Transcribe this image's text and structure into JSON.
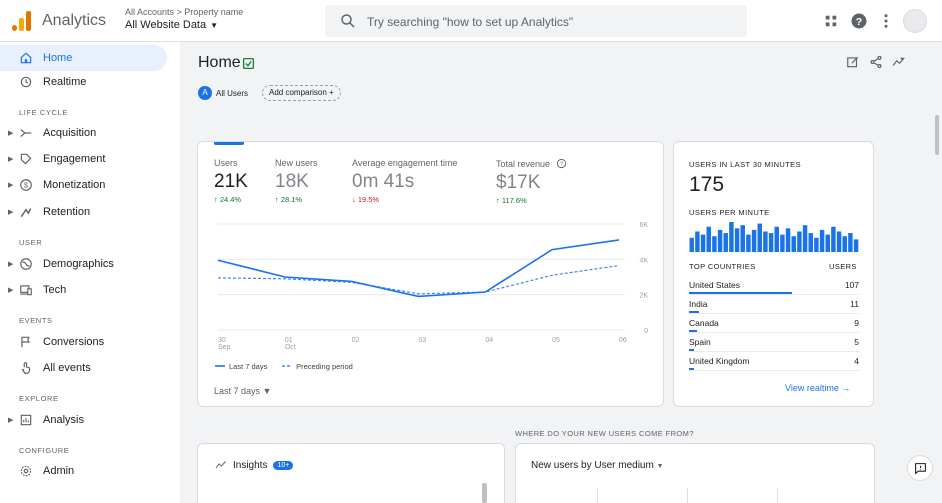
{
  "app": {
    "title": "Analytics",
    "breadcrumb": "All Accounts > Property name",
    "property": "All Website Data",
    "brand_colors": [
      "#f9ab00",
      "#e37400"
    ]
  },
  "search": {
    "placeholder": "Try searching \"how to set up Analytics\""
  },
  "header_icons": [
    "apps-icon",
    "help-icon",
    "more-vert-icon",
    "avatar"
  ],
  "sidebar": {
    "items": [
      {
        "label": "Home",
        "icon": "home-icon",
        "active": true
      },
      {
        "label": "Realtime",
        "icon": "clock-icon"
      },
      {
        "section": "LIFE CYCLE"
      },
      {
        "label": "Acquisition",
        "icon": "acquisition-icon",
        "expandable": true
      },
      {
        "label": "Engagement",
        "icon": "engagement-icon",
        "expandable": true
      },
      {
        "label": "Monetization",
        "icon": "dollar-icon",
        "expandable": true
      },
      {
        "label": "Retention",
        "icon": "retention-icon",
        "expandable": true
      },
      {
        "section": "USER"
      },
      {
        "label": "Demographics",
        "icon": "globe-icon",
        "expandable": true
      },
      {
        "label": "Tech",
        "icon": "devices-icon",
        "expandable": true
      },
      {
        "section": "EVENTS"
      },
      {
        "label": "Conversions",
        "icon": "flag-icon"
      },
      {
        "label": "All events",
        "icon": "touch-icon"
      },
      {
        "section": "EXPLORE"
      },
      {
        "label": "Analysis",
        "icon": "analysis-icon",
        "expandable": true
      },
      {
        "section": "CONFIGURE"
      },
      {
        "label": "Admin",
        "icon": "gear-icon"
      }
    ]
  },
  "main": {
    "title": "Home",
    "chips": {
      "all_users": "All Users",
      "all_users_letter": "A",
      "add_comparison": "Add comparison"
    },
    "metrics": [
      {
        "label": "Users",
        "value": "21K",
        "change": "↑ 24.4%",
        "trend": "up"
      },
      {
        "label": "New users",
        "value": "18K",
        "change": "↑ 28.1%",
        "trend": "up"
      },
      {
        "label": "Average engagement time",
        "value": "0m 41s",
        "change": "↓ 19.5%",
        "trend": "down"
      },
      {
        "label": "Total revenue",
        "value": "$17K",
        "change": "↑ 117.6%",
        "trend": "up"
      }
    ],
    "date_range": "Last 7 days",
    "realtime": {
      "title": "USERS IN LAST 30 MINUTES",
      "value": "175",
      "per_minute_label": "USERS PER MINUTE",
      "per_minute": [
        9,
        13,
        11,
        16,
        10,
        14,
        12,
        19,
        15,
        17,
        11,
        14,
        18,
        13,
        12,
        16,
        11,
        15,
        10,
        13,
        17,
        12,
        9,
        14,
        11,
        16,
        13,
        10,
        12,
        8
      ],
      "countries_header": "TOP COUNTRIES",
      "users_header": "USERS",
      "countries": [
        {
          "name": "United States",
          "users": "107",
          "share": 1.0
        },
        {
          "name": "India",
          "users": "11",
          "share": 0.1
        },
        {
          "name": "Canada",
          "users": "9",
          "share": 0.08
        },
        {
          "name": "Spain",
          "users": "5",
          "share": 0.05
        },
        {
          "name": "United Kingdom",
          "users": "4",
          "share": 0.04
        }
      ],
      "view_link": "View realtime →"
    },
    "new_users_heading": "WHERE DO YOUR NEW USERS COME FROM?",
    "insights": {
      "label": "Insights",
      "badge": "10+"
    },
    "new_users_card": {
      "label": "New users by User medium"
    }
  },
  "chart_data": {
    "type": "line",
    "categories": [
      "30 Sep",
      "01 Oct",
      "02",
      "03",
      "04",
      "05",
      "06"
    ],
    "series": [
      {
        "name": "Last 7 days",
        "values": [
          3950,
          3000,
          2750,
          1900,
          2150,
          4550,
          5100
        ],
        "style": "solid",
        "color": "#1a73e8"
      },
      {
        "name": "Preceding period",
        "values": [
          2950,
          2900,
          2700,
          2050,
          2150,
          3100,
          3650
        ],
        "style": "dashed",
        "color": "#4285f4"
      }
    ],
    "y_ticks": [
      "6K",
      "4K",
      "2K",
      "0"
    ],
    "ylim": [
      0,
      6000
    ],
    "grid": true,
    "legend": "bottom-left"
  }
}
